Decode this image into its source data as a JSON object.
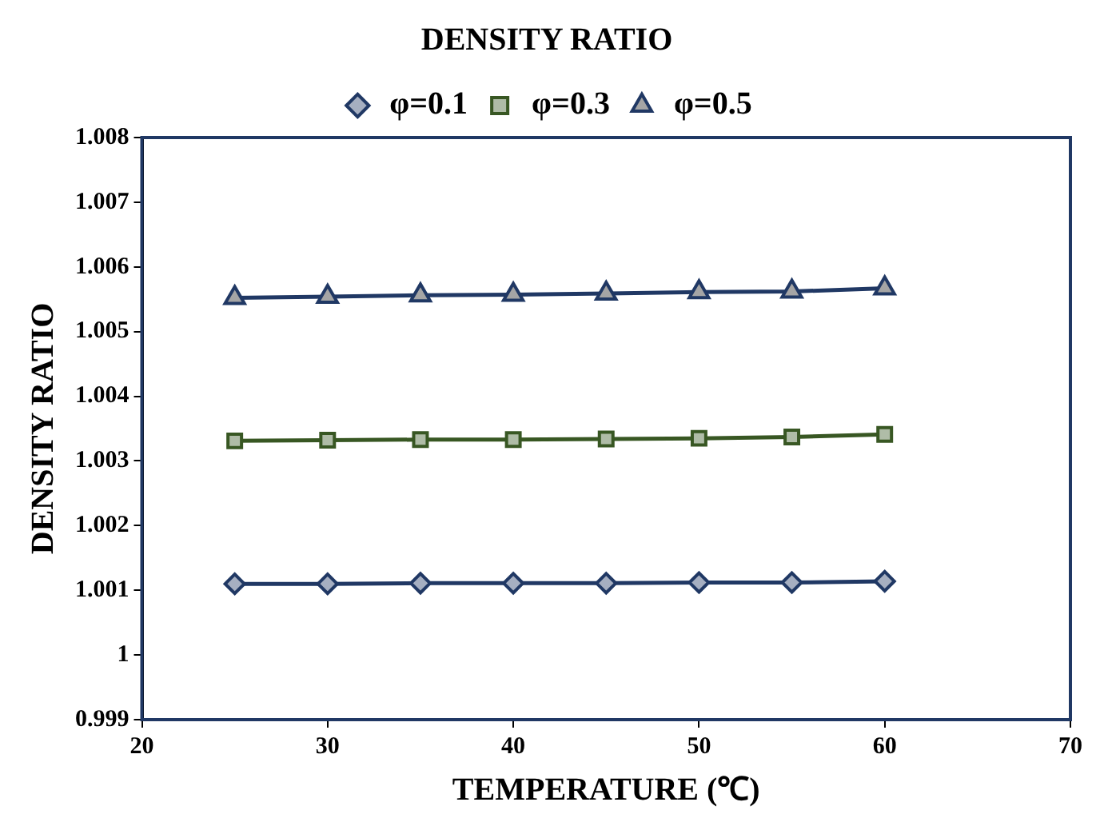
{
  "chart_data": {
    "type": "line",
    "title": "DENSITY RATIO",
    "xlabel": "TEMPERATURE (℃)",
    "ylabel": "DENSITY RATIO",
    "x": [
      25,
      30,
      35,
      40,
      45,
      50,
      55,
      60
    ],
    "series": [
      {
        "name": "φ=0.1",
        "color": "#203864",
        "marker": "diamond",
        "values": [
          1.0011,
          1.0011,
          1.00111,
          1.00111,
          1.00111,
          1.00112,
          1.00112,
          1.00114
        ]
      },
      {
        "name": "φ=0.3",
        "color": "#385723",
        "marker": "square",
        "values": [
          1.00331,
          1.00332,
          1.00333,
          1.00333,
          1.00334,
          1.00335,
          1.00337,
          1.00341
        ]
      },
      {
        "name": "φ=0.5",
        "color": "#203864",
        "marker": "triangle",
        "values": [
          1.00552,
          1.00554,
          1.00556,
          1.00557,
          1.00559,
          1.00561,
          1.00562,
          1.00567
        ]
      }
    ],
    "xlim": [
      20,
      70
    ],
    "xticks": [
      20,
      30,
      40,
      50,
      60,
      70
    ],
    "ylim": [
      0.999,
      1.008
    ],
    "yticks": [
      0.999,
      1,
      1.001,
      1.002,
      1.003,
      1.004,
      1.005,
      1.006,
      1.007,
      1.008
    ],
    "grid": false,
    "legend": "top",
    "line_style": "solid"
  }
}
